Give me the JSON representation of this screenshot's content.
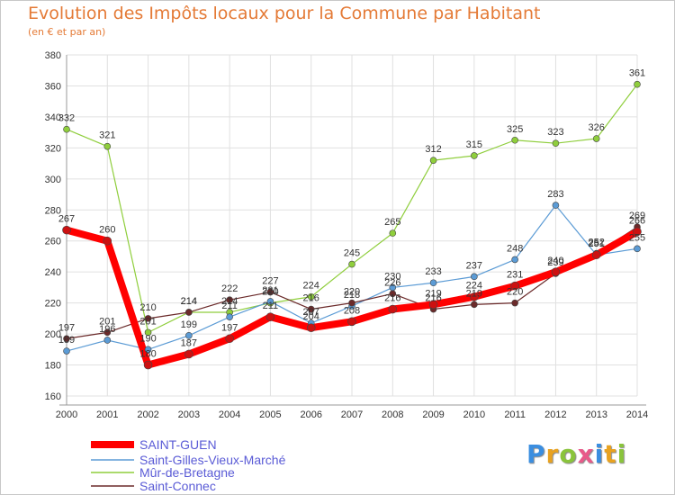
{
  "title": "Evolution des Impôts locaux pour la Commune par Habitant",
  "subtitle": "(en € et par an)",
  "logo": "Proxiti",
  "chart_data": {
    "type": "line",
    "x": [
      2000,
      2001,
      2002,
      2003,
      2004,
      2005,
      2006,
      2007,
      2008,
      2009,
      2010,
      2011,
      2012,
      2013,
      2014
    ],
    "ylim": [
      160,
      380
    ],
    "yticks": [
      160,
      180,
      200,
      220,
      240,
      260,
      280,
      300,
      320,
      340,
      360,
      380
    ],
    "grid": true,
    "legend": "bottom-left",
    "series": [
      {
        "name": "SAINT-GUEN",
        "color": "#ff0000",
        "values": [
          267,
          260,
          180,
          187,
          197,
          211,
          204,
          208,
          216,
          219,
          224,
          231,
          240,
          251,
          266
        ]
      },
      {
        "name": "Saint-Gilles-Vieux-Marché",
        "color": "#5b9bd5",
        "values": [
          189,
          196,
          190,
          199,
          211,
          221,
          207,
          218,
          230,
          233,
          237,
          248,
          283,
          251,
          255
        ]
      },
      {
        "name": "Mûr-de-Bretagne",
        "color": "#8fce3c",
        "values": [
          332,
          321,
          201,
          214,
          214,
          220,
          224,
          245,
          265,
          312,
          315,
          325,
          323,
          326,
          361
        ]
      },
      {
        "name": "Saint-Connec",
        "color": "#6b2a2a",
        "values": [
          197,
          201,
          210,
          214,
          222,
          227,
          216,
          220,
          226,
          216,
          219,
          220,
          239,
          252,
          269
        ]
      }
    ]
  }
}
